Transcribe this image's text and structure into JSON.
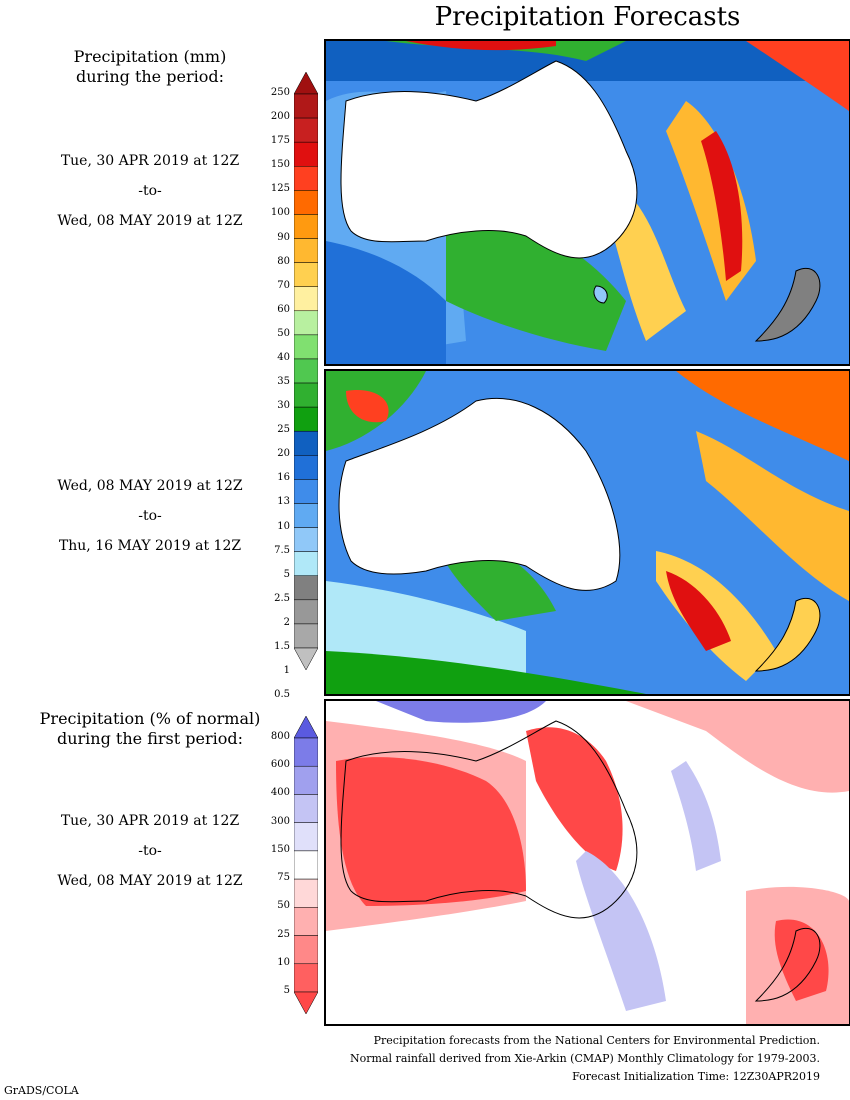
{
  "title": "Precipitation Forecasts",
  "legend_mm": {
    "heading_line1": "Precipitation (mm)",
    "heading_line2": "during the period:",
    "levels": [
      "250",
      "200",
      "175",
      "150",
      "125",
      "100",
      "90",
      "80",
      "70",
      "60",
      "50",
      "40",
      "35",
      "30",
      "25",
      "20",
      "16",
      "13",
      "10",
      "7.5",
      "5",
      "2.5",
      "2",
      "1.5",
      "1",
      "0.5"
    ],
    "colors": [
      "#a01010",
      "#b01818",
      "#c82020",
      "#e01010",
      "#ff4020",
      "#ff6a00",
      "#ff9a10",
      "#ffb830",
      "#ffd050",
      "#fff0a0",
      "#b8f0a0",
      "#80e070",
      "#50c850",
      "#30b030",
      "#10a010",
      "#1060c0",
      "#2070d8",
      "#3f8cea",
      "#60aaf2",
      "#90c8f8",
      "#b0e8f8",
      "#808080",
      "#989898",
      "#a8a8a8",
      "#c0c0c0"
    ]
  },
  "legend_pct": {
    "heading_line1": "Precipitation (% of normal)",
    "heading_line2": "during the first period:",
    "levels": [
      "800",
      "600",
      "400",
      "300",
      "150",
      "75",
      "50",
      "25",
      "10",
      "5"
    ],
    "colors": [
      "#5a5ae0",
      "#7c7ce8",
      "#a0a0ee",
      "#c4c4f4",
      "#e0e0fa",
      "#ffffff",
      "#ffd8d8",
      "#ffb0b0",
      "#ff8888",
      "#ff6060",
      "#ff4848"
    ]
  },
  "periods": [
    {
      "start": "Tue, 30 APR 2019 at 12Z",
      "sep": "-to-",
      "end": "Wed, 08 MAY 2019 at 12Z"
    },
    {
      "start": "Wed, 08 MAY 2019 at 12Z",
      "sep": "-to-",
      "end": "Thu, 16 MAY 2019 at 12Z"
    },
    {
      "start": "Tue, 30 APR 2019 at 12Z",
      "sep": "-to-",
      "end": "Wed, 08 MAY 2019 at 12Z"
    }
  ],
  "footer": {
    "line1": "Precipitation forecasts from the National Centers for Environmental Prediction.",
    "line2": "Normal rainfall derived from Xie-Arkin (CMAP) Monthly Climatology for 1979-2003.",
    "line3": "Forecast Initialization Time: 12Z30APR2019"
  },
  "credit": "GrADS/COLA"
}
